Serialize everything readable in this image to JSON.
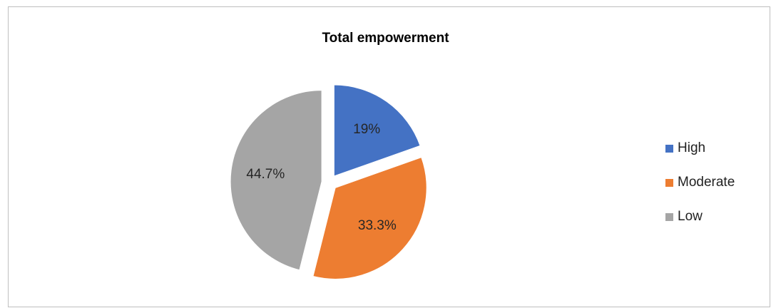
{
  "chart_data": {
    "type": "pie",
    "title": "Total empowerment",
    "categories": [
      "High",
      "Moderate",
      "Low"
    ],
    "values": [
      19,
      33.3,
      44.7
    ],
    "labels": [
      "19%",
      "33.3%",
      "44.7%"
    ],
    "colors": [
      "#4472C4",
      "#ED7D31",
      "#A5A5A5"
    ],
    "exploded": true,
    "legend_position": "right"
  }
}
